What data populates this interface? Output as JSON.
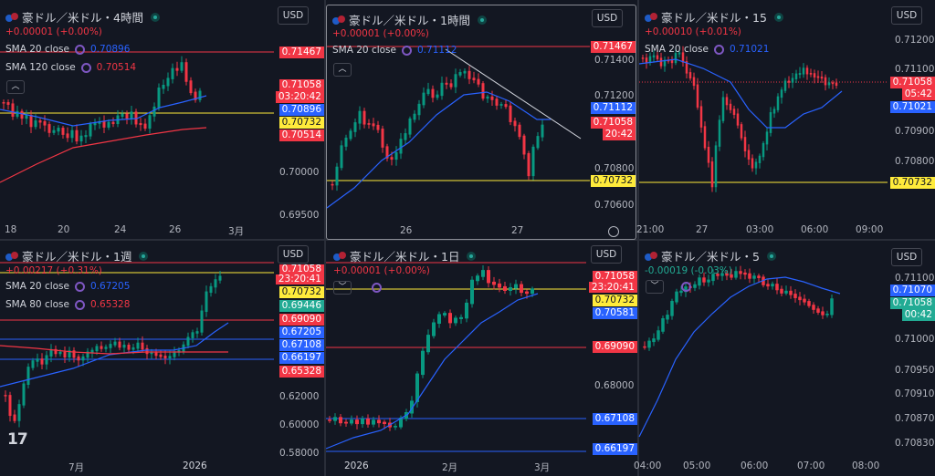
{
  "colors": {
    "up": "#089981",
    "down": "#f23645",
    "sma_blue": "#2962ff",
    "sma_red": "#f23645",
    "yellow": "#ffeb3b",
    "green": "#22ab94",
    "blue_tag": "#2962ff",
    "bg": "#131722"
  },
  "panes": [
    {
      "id": "p1",
      "title": "豪ドル／米ドル・4時間",
      "change": "+0.00001 (+0.00%)",
      "currency": "USD",
      "smas": [
        {
          "label": "SMA 20 close",
          "value": "0.70896",
          "color": "#2962ff"
        },
        {
          "label": "SMA 120 close",
          "value": "0.70514",
          "color": "#f23645"
        }
      ],
      "price_tags": [
        {
          "text": "0.71467",
          "color": "#f23645"
        },
        {
          "text": "0.71058",
          "color": "#f23645"
        },
        {
          "text": "03:20:42",
          "color": "#f23645"
        },
        {
          "text": "0.70896",
          "color": "#2962ff"
        },
        {
          "text": "0.70732",
          "color": "#ffeb3b"
        },
        {
          "text": "0.70514",
          "color": "#f23645"
        }
      ],
      "y_ticks": [
        "0.70000",
        "0.69500"
      ],
      "x_ticks": [
        "18",
        "20",
        "24",
        "26",
        "3月"
      ]
    },
    {
      "id": "p2",
      "title": "豪ドル／米ドル・1時間",
      "change": "+0.00001 (+0.00%)",
      "currency": "USD",
      "smas": [
        {
          "label": "SMA 20 close",
          "value": "0.71112",
          "color": "#2962ff"
        }
      ],
      "price_tags": [
        {
          "text": "0.71467",
          "color": "#f23645"
        },
        {
          "text": "0.71112",
          "color": "#2962ff"
        },
        {
          "text": "0.71058",
          "color": "#f23645"
        },
        {
          "text": "20:42",
          "color": "#f23645"
        },
        {
          "text": "0.70732",
          "color": "#ffeb3b"
        }
      ],
      "y_ticks": [
        "0.71400",
        "0.71200",
        "0.70800",
        "0.70600"
      ],
      "x_ticks": [
        "26",
        "27"
      ]
    },
    {
      "id": "p3",
      "title": "豪ドル／米ドル・15",
      "change": "+0.00010 (+0.01%)",
      "currency": "USD",
      "smas": [
        {
          "label": "SMA 20 close",
          "value": "0.71021",
          "color": "#2962ff"
        }
      ],
      "price_tags": [
        {
          "text": "0.71058",
          "color": "#f23645"
        },
        {
          "text": "05:42",
          "color": "#f23645"
        },
        {
          "text": "0.71021",
          "color": "#2962ff"
        },
        {
          "text": "0.70732",
          "color": "#ffeb3b"
        }
      ],
      "y_ticks": [
        "0.71200",
        "0.71100",
        "0.70900",
        "0.70800"
      ],
      "x_ticks": [
        "21:00",
        "27",
        "03:00",
        "06:00",
        "09:00"
      ]
    },
    {
      "id": "p4",
      "title": "豪ドル／米ドル・1週",
      "change": "+0.00217 (+0.31%)",
      "currency": "USD",
      "smas": [
        {
          "label": "SMA 20 close",
          "value": "0.67205",
          "color": "#2962ff"
        },
        {
          "label": "SMA 80 close",
          "value": "0.65328",
          "color": "#f23645"
        }
      ],
      "price_tags": [
        {
          "text": "0.71058",
          "color": "#f23645"
        },
        {
          "text": "23:20:41",
          "color": "#f23645"
        },
        {
          "text": "0.70732",
          "color": "#ffeb3b"
        },
        {
          "text": "0.69446",
          "color": "#22ab94"
        },
        {
          "text": "0.69090",
          "color": "#f23645"
        },
        {
          "text": "0.67205",
          "color": "#2962ff"
        },
        {
          "text": "0.67108",
          "color": "#2962ff"
        },
        {
          "text": "0.66197",
          "color": "#2962ff"
        },
        {
          "text": "0.65328",
          "color": "#f23645"
        }
      ],
      "y_ticks": [
        "0.62000",
        "0.60000",
        "0.58000"
      ],
      "x_ticks": [
        "7月",
        "2026"
      ],
      "logo": "17"
    },
    {
      "id": "p5",
      "title": "豪ドル／米ドル・1日",
      "change": "+0.00001 (+0.00%)",
      "currency": "USD",
      "smas": [],
      "price_tags": [
        {
          "text": "0.71058",
          "color": "#f23645"
        },
        {
          "text": "23:20:41",
          "color": "#f23645"
        },
        {
          "text": "0.70732",
          "color": "#ffeb3b"
        },
        {
          "text": "0.70581",
          "color": "#2962ff"
        },
        {
          "text": "0.69090",
          "color": "#f23645"
        },
        {
          "text": "0.67108",
          "color": "#2962ff"
        },
        {
          "text": "0.66197",
          "color": "#2962ff"
        }
      ],
      "y_ticks": [
        "0.68000"
      ],
      "x_ticks": [
        "2026",
        "2月",
        "3月"
      ]
    },
    {
      "id": "p6",
      "title": "豪ドル／米ドル・5",
      "change": "-0.00019 (-0.03%)",
      "currency": "USD",
      "smas": [],
      "price_tags": [
        {
          "text": "0.71070",
          "color": "#2962ff"
        },
        {
          "text": "0.71058",
          "color": "#22ab94"
        },
        {
          "text": "00:42",
          "color": "#22ab94"
        }
      ],
      "y_ticks": [
        "0.71100",
        "0.71000",
        "0.70950",
        "0.70910",
        "0.70870",
        "0.70830"
      ],
      "x_ticks": [
        "04:00",
        "05:00",
        "06:00",
        "07:00",
        "08:00"
      ]
    }
  ]
}
